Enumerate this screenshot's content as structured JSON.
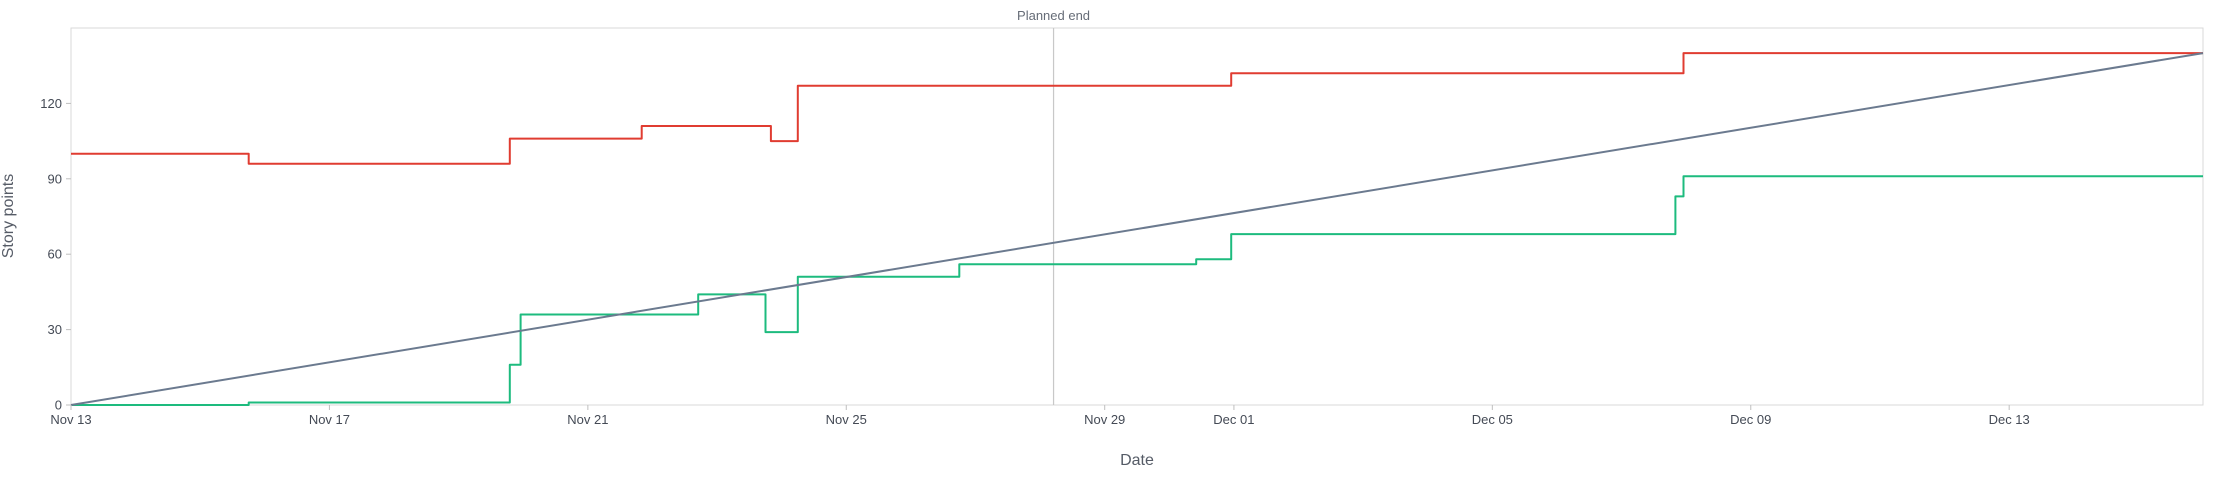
{
  "chart_data": {
    "type": "line",
    "title": "",
    "xlabel": "Date",
    "ylabel": "Story points",
    "x_axis": {
      "type": "date",
      "range": [
        "2023-11-13",
        "2023-12-16"
      ],
      "ticks": [
        {
          "date": "2023-11-13",
          "label": "Nov 13"
        },
        {
          "date": "2023-11-17",
          "label": "Nov 17"
        },
        {
          "date": "2023-11-21",
          "label": "Nov 21"
        },
        {
          "date": "2023-11-25",
          "label": "Nov 25"
        },
        {
          "date": "2023-11-29",
          "label": "Nov 29"
        },
        {
          "date": "2023-12-01",
          "label": "Dec 01"
        },
        {
          "date": "2023-12-05",
          "label": "Dec 05"
        },
        {
          "date": "2023-12-09",
          "label": "Dec 09"
        },
        {
          "date": "2023-12-13",
          "label": "Dec 13"
        }
      ]
    },
    "y_axis": {
      "range": [
        0,
        150
      ],
      "ticks": [
        0,
        30,
        60,
        90,
        120
      ]
    },
    "grid": false,
    "legend": "none",
    "annotations": [
      {
        "type": "vertical-line",
        "date": "2023-11-28T05:00",
        "label": "Planned end",
        "color": "#c8c8c8"
      }
    ],
    "series": [
      {
        "color": "#e03c31",
        "step": true,
        "points": [
          [
            "2023-11-13T00:00",
            100
          ],
          [
            "2023-11-15T18:00",
            96
          ],
          [
            "2023-11-19T19:00",
            106
          ],
          [
            "2023-11-21T20:00",
            111
          ],
          [
            "2023-11-23T20:00",
            105
          ],
          [
            "2023-11-24T06:00",
            127
          ],
          [
            "2023-11-30T23:00",
            132
          ],
          [
            "2023-12-07T23:00",
            140
          ],
          [
            "2023-12-16T00:00",
            140
          ]
        ]
      },
      {
        "color": "#1dbb7e",
        "step": true,
        "points": [
          [
            "2023-11-13T00:00",
            0
          ],
          [
            "2023-11-15T18:00",
            1
          ],
          [
            "2023-11-19T19:00",
            16
          ],
          [
            "2023-11-19T23:00",
            36
          ],
          [
            "2023-11-22T17:00",
            44
          ],
          [
            "2023-11-23T18:00",
            29
          ],
          [
            "2023-11-24T06:00",
            51
          ],
          [
            "2023-11-26T18:00",
            56
          ],
          [
            "2023-11-30T10:00",
            58
          ],
          [
            "2023-11-30T23:00",
            68
          ],
          [
            "2023-12-07T20:00",
            83
          ],
          [
            "2023-12-07T23:00",
            91
          ],
          [
            "2023-12-16T00:00",
            91
          ]
        ]
      },
      {
        "color": "#6b7a8f",
        "step": false,
        "points": [
          [
            "2023-11-13T00:00",
            0
          ],
          [
            "2023-12-16T00:00",
            140
          ]
        ]
      }
    ]
  }
}
